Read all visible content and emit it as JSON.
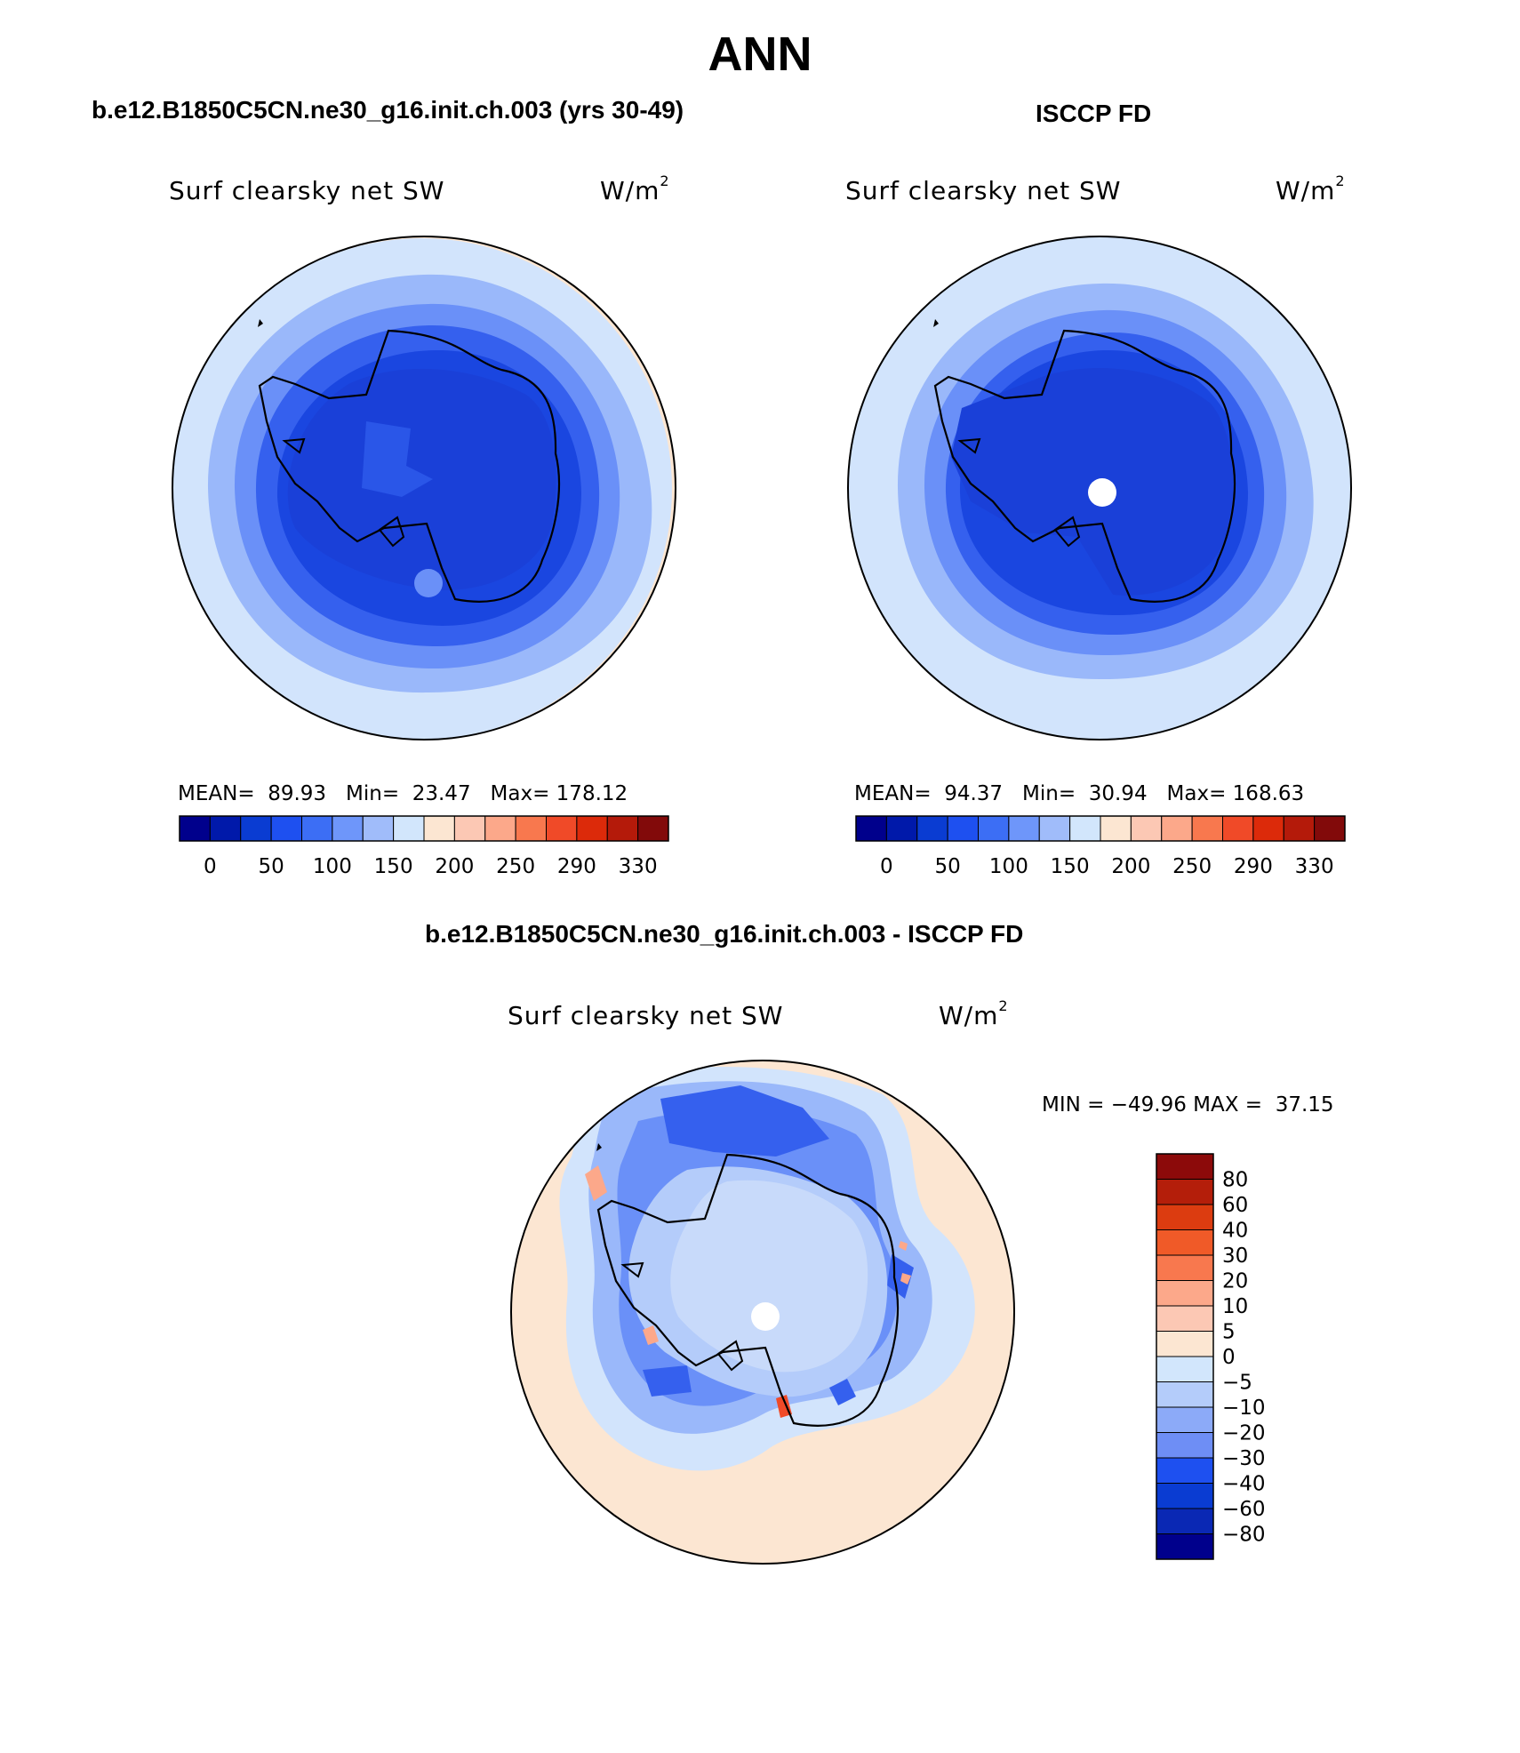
{
  "title": "ANN",
  "panels": {
    "model": {
      "heading": "b.e12.B1850C5CN.ne30_g16.init.ch.003 (yrs 30-49)",
      "variable": "Surf clearsky net SW",
      "units_base": "W/m",
      "units_exp": "2",
      "mean_label": "MEAN=",
      "mean": "89.93",
      "min_label": "Min=",
      "min": "23.47",
      "max_label": "Max=",
      "max": "178.12"
    },
    "obs": {
      "heading": "ISCCP FD",
      "variable": "Surf clearsky net SW",
      "units_base": "W/m",
      "units_exp": "2",
      "mean_label": "MEAN=",
      "mean": "94.37",
      "min_label": "Min=",
      "min": "30.94",
      "max_label": "Max=",
      "max": "168.63"
    },
    "diff": {
      "heading": "b.e12.B1850C5CN.ne30_g16.init.ch.003 - ISCCP FD",
      "variable": "Surf clearsky net SW",
      "units_base": "W/m",
      "units_exp": "2",
      "minmax_text": "MIN = −49.96 MAX =  37.15"
    }
  },
  "abs_colorbar": {
    "colors": [
      "#00008c",
      "#0019aa",
      "#0a3cd2",
      "#1e50f0",
      "#3c6ef5",
      "#6e96fa",
      "#a0bcfa",
      "#d2e6fc",
      "#fce6d2",
      "#fcc8b4",
      "#fca88a",
      "#f8784e",
      "#f04a28",
      "#dc2a0a",
      "#b41a0a",
      "#820a0a"
    ],
    "tick_labels": [
      "0",
      "50",
      "100",
      "150",
      "200",
      "250",
      "290",
      "330"
    ]
  },
  "diff_colorbar": {
    "colors_top_to_bottom": [
      "#8c0a0a",
      "#b41e0a",
      "#dc3c10",
      "#f05a28",
      "#f8784e",
      "#fca88a",
      "#fcc8b4",
      "#fce6d2",
      "#d2e6fc",
      "#b4ccfa",
      "#8caaf8",
      "#6e8ef5",
      "#1e50f0",
      "#0a3cd2",
      "#0a28b4",
      "#00008c"
    ],
    "tick_labels": [
      "80",
      "60",
      "40",
      "30",
      "20",
      "10",
      "5",
      "0",
      "−5",
      "−10",
      "−20",
      "−30",
      "−40",
      "−60",
      "−80"
    ]
  },
  "palette": {
    "deep": "#1a46e0",
    "mid": "#3560ee",
    "light1": "#6a90f8",
    "light2": "#9ab8fa",
    "light3": "#d2e4fc",
    "peach": "#fce6d2",
    "white": "#ffffff"
  }
}
